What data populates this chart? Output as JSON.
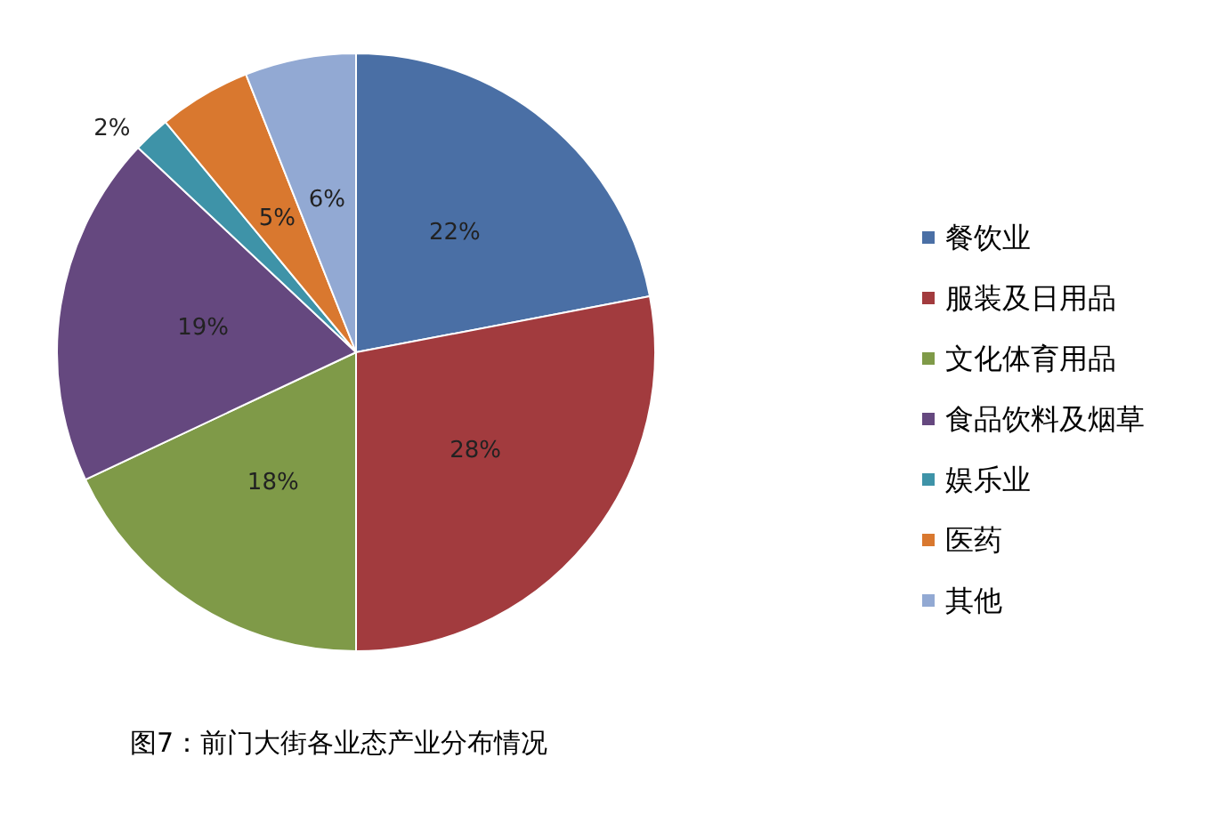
{
  "chart_data": {
    "type": "pie",
    "categories": [
      "餐饮业",
      "服装及日用品",
      "文化体育用品",
      "食品饮料及烟草",
      "娱乐业",
      "医药",
      "其他"
    ],
    "values": [
      22,
      28,
      18,
      19,
      2,
      5,
      6
    ],
    "colors": [
      "#4a6fa5",
      "#a23b3e",
      "#7f9a48",
      "#65487f",
      "#3e93a8",
      "#d9782f",
      "#92a9d3"
    ],
    "value_labels": [
      "22%",
      "28%",
      "18%",
      "19%",
      "2%",
      "5%",
      "6%"
    ],
    "legend": "right",
    "annotations": [
      "图7：前门大街各业态产业分布情况"
    ]
  }
}
